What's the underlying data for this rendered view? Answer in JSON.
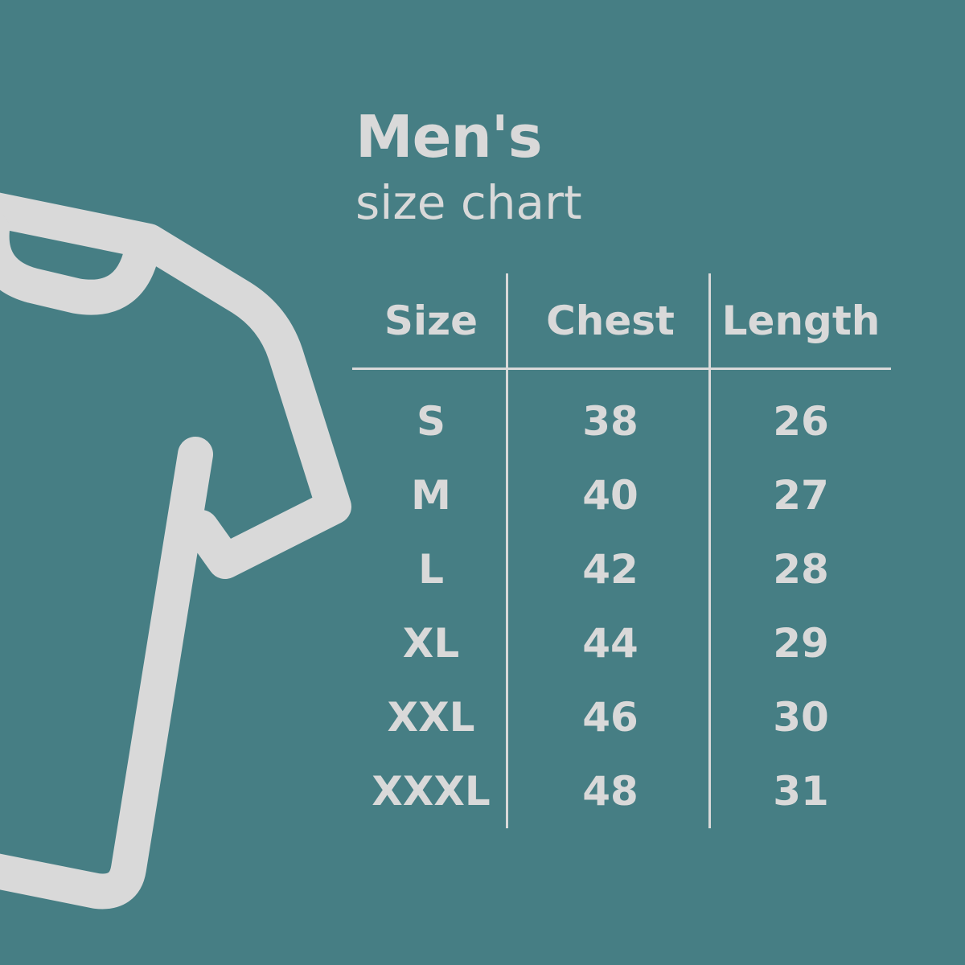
{
  "title": "Men's",
  "subtitle": "size chart",
  "colors": {
    "background": "#467e84",
    "foreground": "#d9d9d9"
  },
  "illustration": "t-shirt-outline-icon",
  "table": {
    "headers": [
      "Size",
      "Chest",
      "Length"
    ],
    "rows": [
      [
        "S",
        "38",
        "26"
      ],
      [
        "M",
        "40",
        "27"
      ],
      [
        "L",
        "42",
        "28"
      ],
      [
        "XL",
        "44",
        "29"
      ],
      [
        "XXL",
        "46",
        "30"
      ],
      [
        "XXXL",
        "48",
        "31"
      ]
    ]
  }
}
